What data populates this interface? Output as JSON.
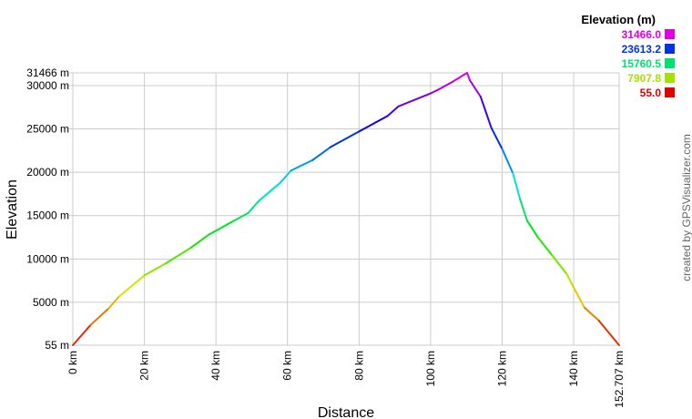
{
  "chart_data": {
    "type": "line",
    "xlabel": "Distance",
    "ylabel": "Elevation",
    "xlim": [
      0,
      152.707
    ],
    "ylim": [
      55,
      31466
    ],
    "grid": true,
    "x_ticks": [
      {
        "value": 0,
        "label": "0 km"
      },
      {
        "value": 20,
        "label": "20 km"
      },
      {
        "value": 40,
        "label": "40 km"
      },
      {
        "value": 60,
        "label": "60 km"
      },
      {
        "value": 80,
        "label": "80 km"
      },
      {
        "value": 100,
        "label": "100 km"
      },
      {
        "value": 120,
        "label": "120 km"
      },
      {
        "value": 140,
        "label": "140 km"
      },
      {
        "value": 152.707,
        "label": "152.707 km"
      }
    ],
    "y_ticks": [
      {
        "value": 55,
        "label": "55 m"
      },
      {
        "value": 5000,
        "label": "5000 m"
      },
      {
        "value": 10000,
        "label": "10000 m"
      },
      {
        "value": 15000,
        "label": "15000 m"
      },
      {
        "value": 20000,
        "label": "20000 m"
      },
      {
        "value": 25000,
        "label": "25000 m"
      },
      {
        "value": 30000,
        "label": "30000 m"
      },
      {
        "value": 31466,
        "label": "31466 m"
      }
    ],
    "x": [
      0,
      5,
      10,
      13,
      20,
      26,
      33,
      38,
      45,
      49,
      52,
      58,
      61,
      67,
      72,
      80,
      88,
      91,
      100,
      102,
      106,
      110.2,
      111,
      114,
      117,
      120,
      123,
      125,
      127,
      130,
      134,
      138,
      140,
      143,
      147,
      152.707
    ],
    "y": [
      55,
      2400,
      4300,
      5700,
      8100,
      9500,
      11300,
      12800,
      14400,
      15300,
      16700,
      18800,
      20200,
      21400,
      22900,
      24700,
      26500,
      27600,
      29100,
      29500,
      30400,
      31466,
      30600,
      28700,
      25100,
      22700,
      19900,
      16900,
      14400,
      12500,
      10400,
      8300,
      6700,
      4400,
      2900,
      55
    ],
    "legend": {
      "title": "Elevation (m)",
      "position": "top-right",
      "entries": [
        {
          "label": "31466.0",
          "color": "#e000e0"
        },
        {
          "label": "23613.2",
          "color": "#0033e0"
        },
        {
          "label": "15760.5",
          "color": "#00e070"
        },
        {
          "label": "7907.8",
          "color": "#a8e000"
        },
        {
          "label": "55.0",
          "color": "#e00000"
        }
      ]
    },
    "color_scale": "elevation hue gradient red→yellow→green→cyan→blue→magenta"
  },
  "credit": "created by GPSVisualizer.com"
}
